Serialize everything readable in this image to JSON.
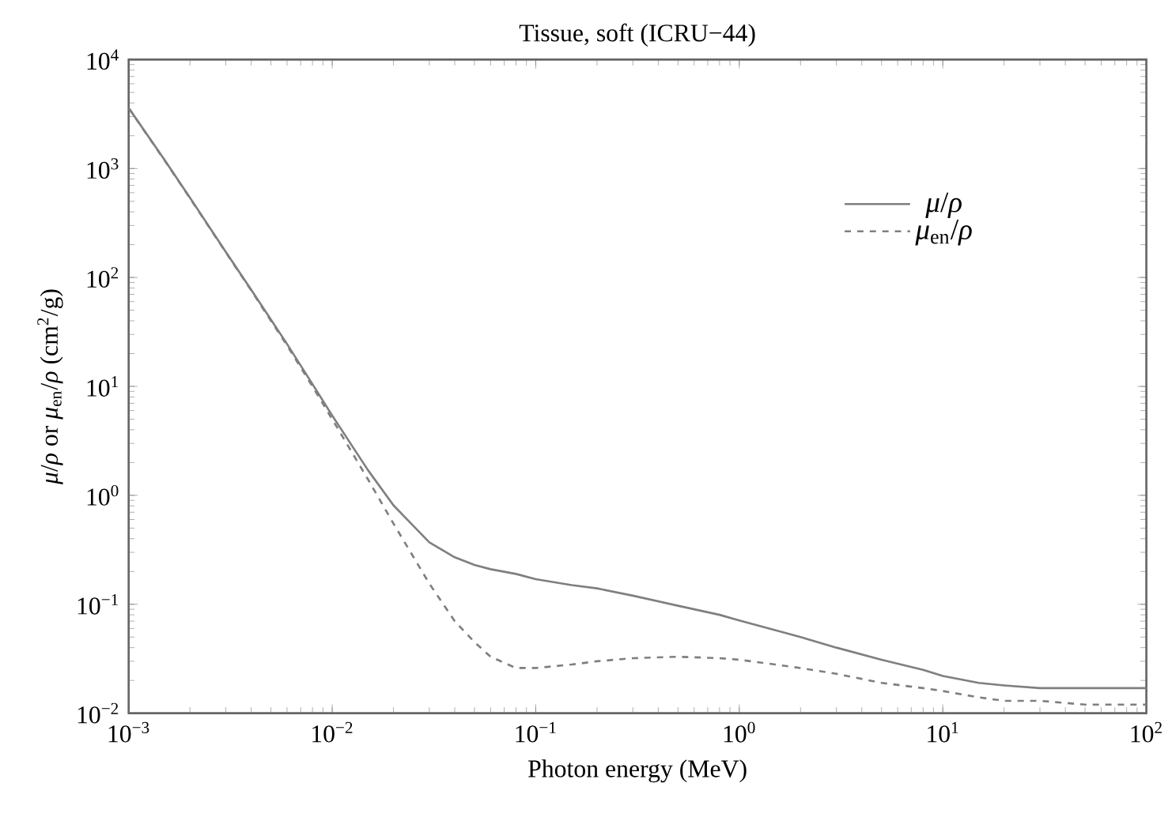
{
  "chart_data": {
    "type": "line",
    "title": "Tissue, soft (ICRU−44)",
    "xlabel": "Photon energy (MeV)",
    "ylabel": "*μ*/*ρ* or *μ*$_{en}$/*ρ* (cm$^{2}$/g)",
    "log": "xy",
    "legend": "top right",
    "xlim": [
      0.001,
      100
    ],
    "ylim": [
      0.01,
      10000
    ],
    "xticks": [
      {
        "value": 0.001,
        "label": "10$^{−3}$"
      },
      {
        "value": 0.01,
        "label": "10$^{−2}$"
      },
      {
        "value": 0.1,
        "label": "10$^{−1}$"
      },
      {
        "value": 1,
        "label": "10$^{0}$"
      },
      {
        "value": 10,
        "label": "10$^{1}$"
      },
      {
        "value": 100,
        "label": "10$^{2}$"
      }
    ],
    "yticks": [
      {
        "value": 0.01,
        "label": "10$^{−2}$"
      },
      {
        "value": 0.1,
        "label": "10$^{−1}$"
      },
      {
        "value": 1,
        "label": "10$^{0}$"
      },
      {
        "value": 10,
        "label": "10$^{1}$"
      },
      {
        "value": 100,
        "label": "10$^{2}$"
      },
      {
        "value": 1000,
        "label": "10$^{3}$"
      },
      {
        "value": 10000,
        "label": "10$^{4}$"
      }
    ],
    "x": [
      0.001,
      0.0015,
      0.002,
      0.003,
      0.004,
      0.005,
      0.006,
      0.008,
      0.01,
      0.015,
      0.02,
      0.03,
      0.04,
      0.05,
      0.06,
      0.08,
      0.1,
      0.15,
      0.2,
      0.3,
      0.5,
      0.8,
      1,
      1.5,
      2,
      3,
      5,
      8,
      10,
      15,
      20,
      30,
      50,
      100
    ],
    "series": [
      {
        "name": "*μ*/*ρ*",
        "color": "#7f7f7f",
        "line_style": "solid",
        "values": [
          3600,
          1200,
          540,
          172,
          77,
          41,
          24.5,
          10.5,
          5.4,
          1.7,
          0.81,
          0.37,
          0.27,
          0.23,
          0.21,
          0.19,
          0.17,
          0.15,
          0.14,
          0.12,
          0.097,
          0.08,
          0.071,
          0.058,
          0.05,
          0.04,
          0.031,
          0.025,
          0.022,
          0.019,
          0.018,
          0.017,
          0.017,
          0.017
        ]
      },
      {
        "name": "*μ*$_{en}$/*ρ*",
        "color": "#7f7f7f",
        "line_style": "dashed",
        "values": [
          3590,
          1190,
          535,
          170,
          76,
          40,
          23.8,
          10,
          5,
          1.4,
          0.55,
          0.155,
          0.07,
          0.045,
          0.033,
          0.026,
          0.026,
          0.028,
          0.03,
          0.032,
          0.033,
          0.032,
          0.031,
          0.028,
          0.026,
          0.023,
          0.019,
          0.017,
          0.016,
          0.014,
          0.013,
          0.013,
          0.012,
          0.012
        ]
      }
    ]
  }
}
